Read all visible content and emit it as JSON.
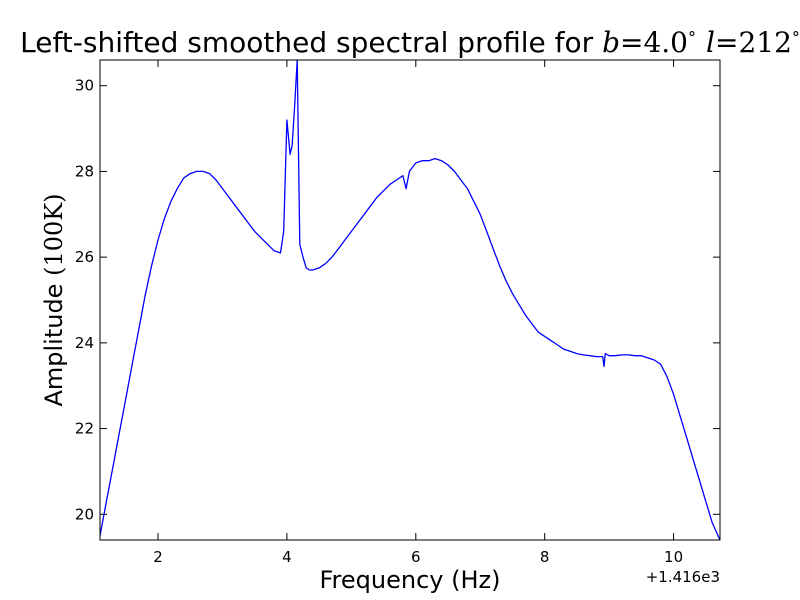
{
  "chart_data": {
    "type": "line",
    "title_prefix": "Left-shifted smoothed spectral profile for ",
    "title_b_var": "b",
    "title_b_value": "4.0",
    "title_l_var": "l",
    "title_l_value": "212",
    "title_eq": "=",
    "title_deg": "°",
    "xlabel": "Frequency (Hz)",
    "ylabel_prefix": "Amplitude ",
    "ylabel_unit": "(100K)",
    "x_offset_label": "+1.416e3",
    "xlim": [
      1.1,
      10.72
    ],
    "ylim": [
      19.4,
      30.6
    ],
    "xticks": [
      2,
      4,
      6,
      8,
      10
    ],
    "yticks": [
      20,
      22,
      24,
      26,
      28,
      30
    ],
    "line_color": "#0000ff",
    "series": [
      {
        "x": [
          1.1,
          1.2,
          1.3,
          1.4,
          1.5,
          1.6,
          1.7,
          1.8,
          1.9,
          2.0,
          2.1,
          2.2,
          2.3,
          2.4,
          2.5,
          2.6,
          2.7,
          2.8,
          2.9,
          3.0,
          3.1,
          3.2,
          3.3,
          3.4,
          3.5,
          3.6,
          3.7,
          3.8,
          3.9,
          3.95,
          4.0,
          4.05,
          4.08,
          4.12,
          4.16,
          4.2,
          4.25,
          4.3,
          4.35,
          4.4,
          4.5,
          4.6,
          4.7,
          4.8,
          4.9,
          5.0,
          5.1,
          5.2,
          5.3,
          5.4,
          5.5,
          5.6,
          5.7,
          5.8,
          5.85,
          5.9,
          5.95,
          6.0,
          6.1,
          6.2,
          6.3,
          6.4,
          6.5,
          6.6,
          6.7,
          6.8,
          6.9,
          7.0,
          7.1,
          7.2,
          7.3,
          7.4,
          7.5,
          7.6,
          7.7,
          7.8,
          7.9,
          8.0,
          8.1,
          8.2,
          8.3,
          8.4,
          8.5,
          8.6,
          8.7,
          8.8,
          8.9,
          8.92,
          8.94,
          9.0,
          9.1,
          9.2,
          9.3,
          9.4,
          9.5,
          9.6,
          9.7,
          9.8,
          9.9,
          10.0,
          10.1,
          10.2,
          10.3,
          10.4,
          10.5,
          10.6,
          10.72
        ],
        "y": [
          19.5,
          20.3,
          21.1,
          21.9,
          22.7,
          23.5,
          24.3,
          25.1,
          25.8,
          26.4,
          26.9,
          27.3,
          27.6,
          27.85,
          27.95,
          28.0,
          28.0,
          27.95,
          27.8,
          27.6,
          27.4,
          27.2,
          27.0,
          26.8,
          26.6,
          26.45,
          26.3,
          26.15,
          26.1,
          26.6,
          29.2,
          28.4,
          28.6,
          29.5,
          30.6,
          26.3,
          26.0,
          25.75,
          25.7,
          25.7,
          25.75,
          25.85,
          26.0,
          26.2,
          26.4,
          26.6,
          26.8,
          27.0,
          27.2,
          27.4,
          27.55,
          27.7,
          27.8,
          27.9,
          27.6,
          28.0,
          28.1,
          28.2,
          28.25,
          28.25,
          28.3,
          28.25,
          28.15,
          28.0,
          27.8,
          27.6,
          27.3,
          27.0,
          26.6,
          26.2,
          25.8,
          25.45,
          25.15,
          24.9,
          24.65,
          24.45,
          24.25,
          24.15,
          24.05,
          23.95,
          23.85,
          23.8,
          23.75,
          23.72,
          23.7,
          23.68,
          23.68,
          23.45,
          23.75,
          23.7,
          23.7,
          23.72,
          23.72,
          23.7,
          23.7,
          23.65,
          23.6,
          23.5,
          23.2,
          22.8,
          22.3,
          21.8,
          21.3,
          20.8,
          20.3,
          19.8,
          19.4
        ]
      }
    ]
  }
}
